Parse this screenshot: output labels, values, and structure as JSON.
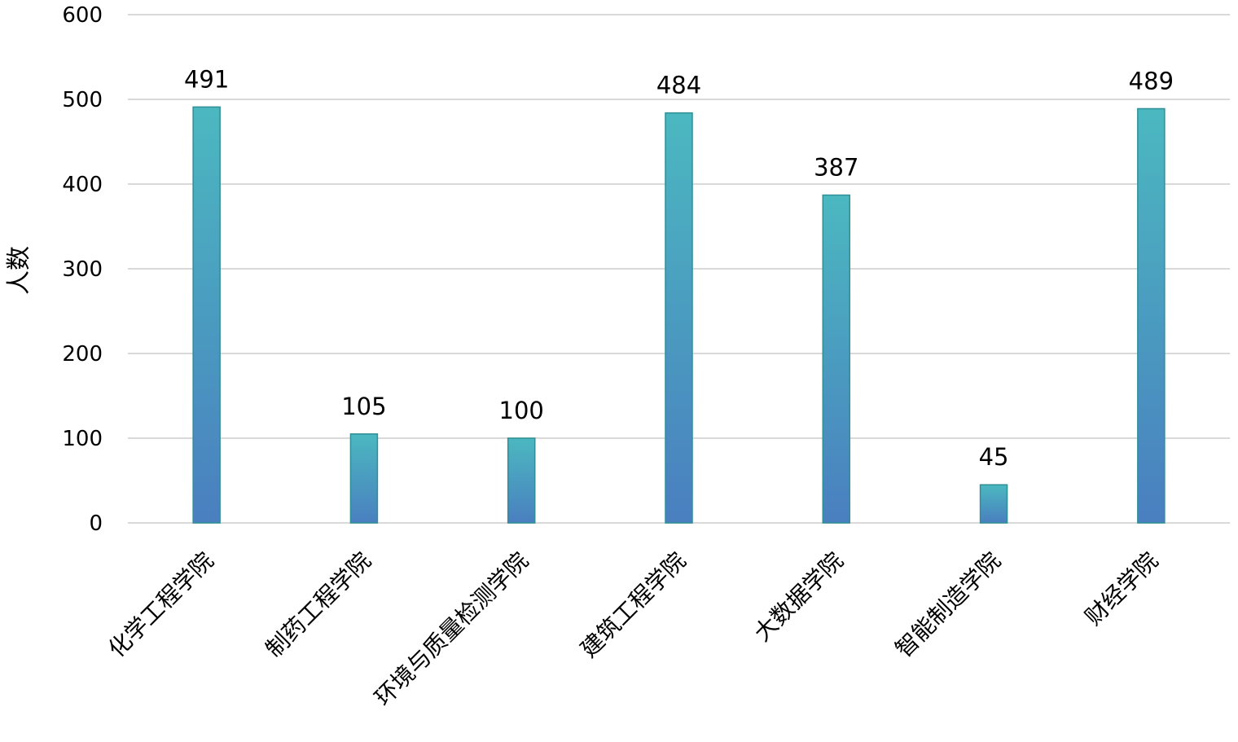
{
  "chart_data": {
    "type": "bar",
    "title": "",
    "xlabel": "",
    "ylabel": "人数",
    "ylim": [
      0,
      600
    ],
    "yticks": [
      0,
      100,
      200,
      300,
      400,
      500,
      600
    ],
    "grid": true,
    "legend": "none",
    "categories": [
      "化学工程学院",
      "制药工程学院",
      "环境与质量检测学院",
      "建筑工程学院",
      "大数据学院",
      "智能制造学院",
      "财经学院"
    ],
    "values": [
      491,
      105,
      100,
      484,
      387,
      45,
      489
    ],
    "bar_gradient": {
      "top": "#4bb8c0",
      "bottom": "#4a7fc0"
    },
    "bar_stroke": "#2f8f96",
    "grid_color": "#d9d9d9"
  }
}
